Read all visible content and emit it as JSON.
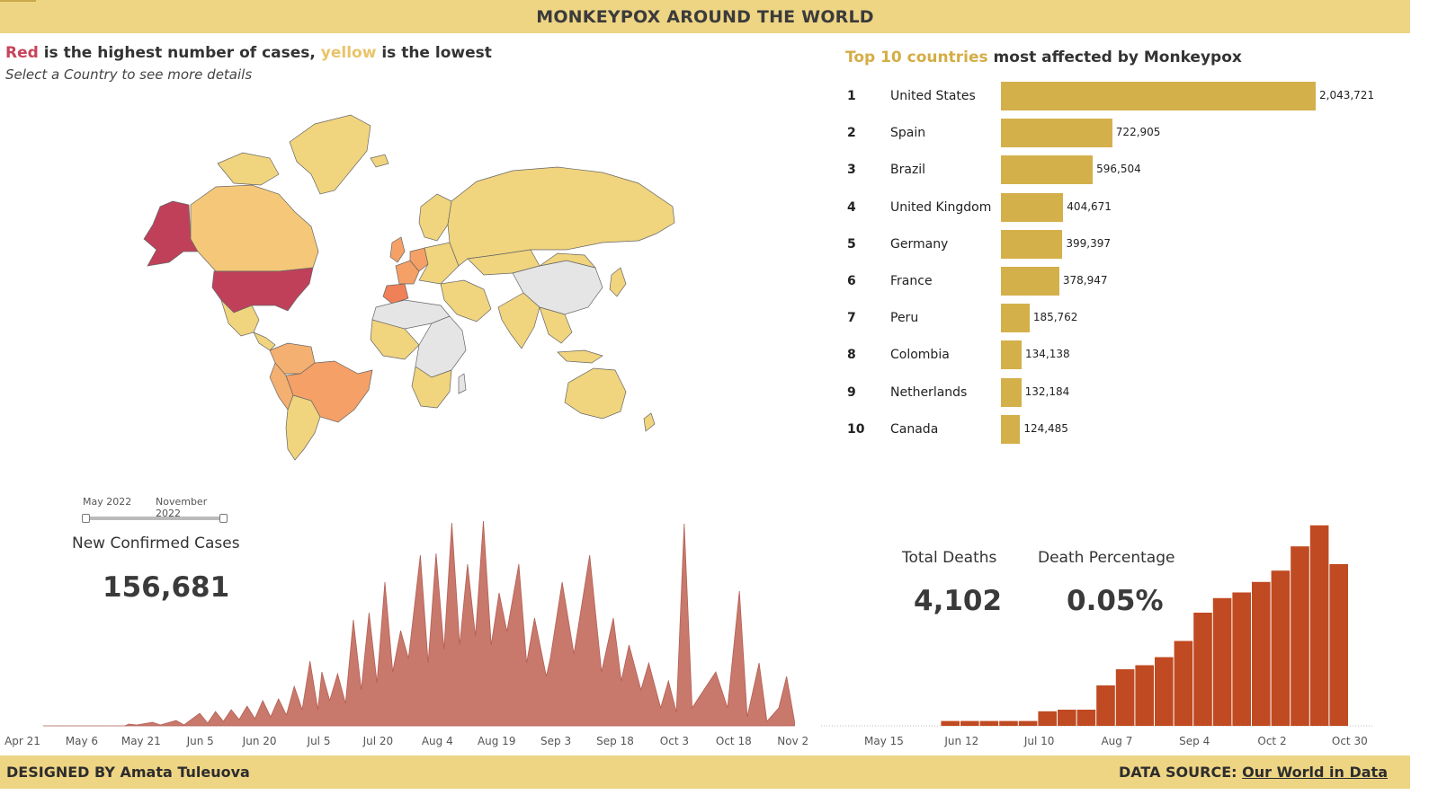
{
  "title": "MONKEYPOX AROUND THE WORLD",
  "footer": {
    "designed_by": "DESIGNED BY Amata Tuleuova",
    "source_prefix": "DATA SOURCE: ",
    "source_link": "Our World in Data"
  },
  "map": {
    "heading_red": "Red",
    "heading_mid1": " is the highest number of cases, ",
    "heading_yellow": "yellow",
    "heading_end": " is the lowest",
    "subheading": "Select a Country to see more details",
    "colors": {
      "highest": "#c0405a",
      "high": "#f4a066",
      "low": "#f0d47e",
      "no_data": "#e5e5e5",
      "border": "#666666"
    }
  },
  "top10": {
    "title_highlight": "Top 10 countries",
    "title_rest": " most affected by Monkeypox",
    "bar_color": "#d4b04b",
    "max": 2043721,
    "rows": [
      {
        "rank": "1",
        "country": "United States",
        "value": 2043721,
        "label": "2,043,721"
      },
      {
        "rank": "2",
        "country": "Spain",
        "value": 722905,
        "label": "722,905"
      },
      {
        "rank": "3",
        "country": "Brazil",
        "value": 596504,
        "label": "596,504"
      },
      {
        "rank": "4",
        "country": "United Kingdom",
        "value": 404671,
        "label": "404,671"
      },
      {
        "rank": "5",
        "country": "Germany",
        "value": 399397,
        "label": "399,397"
      },
      {
        "rank": "6",
        "country": "France",
        "value": 378947,
        "label": "378,947"
      },
      {
        "rank": "7",
        "country": "Peru",
        "value": 185762,
        "label": "185,762"
      },
      {
        "rank": "8",
        "country": "Colombia",
        "value": 134138,
        "label": "134,138"
      },
      {
        "rank": "9",
        "country": "Netherlands",
        "value": 132184,
        "label": "132,184"
      },
      {
        "rank": "10",
        "country": "Canada",
        "value": 124485,
        "label": "124,485"
      }
    ]
  },
  "date_filter": {
    "start": "May 2022",
    "end": "November 2022"
  },
  "kpis": {
    "new_cases_label": "New Confirmed Cases",
    "new_cases_value": "156,681",
    "total_deaths_label": "Total Deaths",
    "total_deaths_value": "4,102",
    "death_pct_label": "Death Percentage",
    "death_pct_value": "0.05%"
  },
  "chart_data": [
    {
      "type": "area",
      "color": "#c9786c",
      "x_ticks": [
        "Apr 21",
        "May 6",
        "May 21",
        "Jun 5",
        "Jun 20",
        "Jul 5",
        "Jul 20",
        "Aug 4",
        "Aug 19",
        "Sep 3",
        "Sep 18",
        "Oct 3",
        "Oct 18",
        "Nov 2"
      ],
      "x_start": "2022-04-21",
      "peaks": [
        [
          "2022-04-21",
          0
        ],
        [
          "2022-05-17",
          0
        ],
        [
          "2022-05-18",
          2
        ],
        [
          "2022-05-20",
          1
        ],
        [
          "2022-05-24",
          4
        ],
        [
          "2022-05-26",
          1
        ],
        [
          "2022-05-30",
          6
        ],
        [
          "2022-06-01",
          1
        ],
        [
          "2022-06-05",
          14
        ],
        [
          "2022-06-07",
          3
        ],
        [
          "2022-06-09",
          16
        ],
        [
          "2022-06-11",
          5
        ],
        [
          "2022-06-13",
          18
        ],
        [
          "2022-06-15",
          7
        ],
        [
          "2022-06-17",
          22
        ],
        [
          "2022-06-19",
          8
        ],
        [
          "2022-06-21",
          28
        ],
        [
          "2022-06-23",
          10
        ],
        [
          "2022-06-25",
          30
        ],
        [
          "2022-06-27",
          12
        ],
        [
          "2022-06-29",
          44
        ],
        [
          "2022-07-01",
          18
        ],
        [
          "2022-07-03",
          72
        ],
        [
          "2022-07-05",
          18
        ],
        [
          "2022-07-06",
          60
        ],
        [
          "2022-07-08",
          28
        ],
        [
          "2022-07-10",
          58
        ],
        [
          "2022-07-12",
          25
        ],
        [
          "2022-07-14",
          118
        ],
        [
          "2022-07-16",
          40
        ],
        [
          "2022-07-18",
          126
        ],
        [
          "2022-07-20",
          48
        ],
        [
          "2022-07-22",
          160
        ],
        [
          "2022-07-24",
          60
        ],
        [
          "2022-07-26",
          106
        ],
        [
          "2022-07-28",
          75
        ],
        [
          "2022-07-31",
          190
        ],
        [
          "2022-08-02",
          70
        ],
        [
          "2022-08-04",
          192
        ],
        [
          "2022-08-06",
          85
        ],
        [
          "2022-08-08",
          226
        ],
        [
          "2022-08-10",
          90
        ],
        [
          "2022-08-12",
          180
        ],
        [
          "2022-08-14",
          100
        ],
        [
          "2022-08-16",
          228
        ],
        [
          "2022-08-18",
          90
        ],
        [
          "2022-08-20",
          148
        ],
        [
          "2022-08-22",
          105
        ],
        [
          "2022-08-25",
          180
        ],
        [
          "2022-08-27",
          70
        ],
        [
          "2022-08-29",
          120
        ],
        [
          "2022-09-01",
          55
        ],
        [
          "2022-09-02",
          75
        ],
        [
          "2022-09-05",
          160
        ],
        [
          "2022-09-08",
          80
        ],
        [
          "2022-09-12",
          190
        ],
        [
          "2022-09-15",
          60
        ],
        [
          "2022-09-18",
          120
        ],
        [
          "2022-09-20",
          50
        ],
        [
          "2022-09-22",
          90
        ],
        [
          "2022-09-25",
          40
        ],
        [
          "2022-09-27",
          70
        ],
        [
          "2022-09-30",
          20
        ],
        [
          "2022-10-02",
          50
        ],
        [
          "2022-10-04",
          15
        ],
        [
          "2022-10-06",
          225
        ],
        [
          "2022-10-08",
          20
        ],
        [
          "2022-10-11",
          40
        ],
        [
          "2022-10-14",
          60
        ],
        [
          "2022-10-17",
          20
        ],
        [
          "2022-10-20",
          150
        ],
        [
          "2022-10-22",
          10
        ],
        [
          "2022-10-25",
          70
        ],
        [
          "2022-10-27",
          5
        ],
        [
          "2022-10-30",
          20
        ],
        [
          "2022-11-01",
          55
        ],
        [
          "2022-11-03",
          5
        ]
      ]
    },
    {
      "type": "bar",
      "color": "#c04a22",
      "x_ticks": [
        "May 15",
        "Jun 12",
        "Jul 10",
        "Aug 7",
        "Sep 4",
        "Oct 2",
        "Oct 30"
      ],
      "categories": [
        "May 15",
        "May 22",
        "May 29",
        "Jun 5",
        "Jun 12",
        "Jun 19",
        "Jun 26",
        "Jul 3",
        "Jul 10",
        "Jul 17",
        "Jul 24",
        "Jul 31",
        "Aug 7",
        "Aug 14",
        "Aug 21",
        "Aug 28",
        "Sep 4",
        "Sep 11",
        "Sep 18",
        "Sep 25",
        "Oct 2",
        "Oct 9",
        "Oct 16",
        "Oct 23",
        "Oct 30"
      ],
      "values": [
        0,
        0,
        0,
        0,
        6,
        6,
        6,
        6,
        6,
        18,
        20,
        20,
        50,
        70,
        75,
        85,
        105,
        140,
        158,
        165,
        178,
        192,
        222,
        248,
        200
      ]
    }
  ]
}
